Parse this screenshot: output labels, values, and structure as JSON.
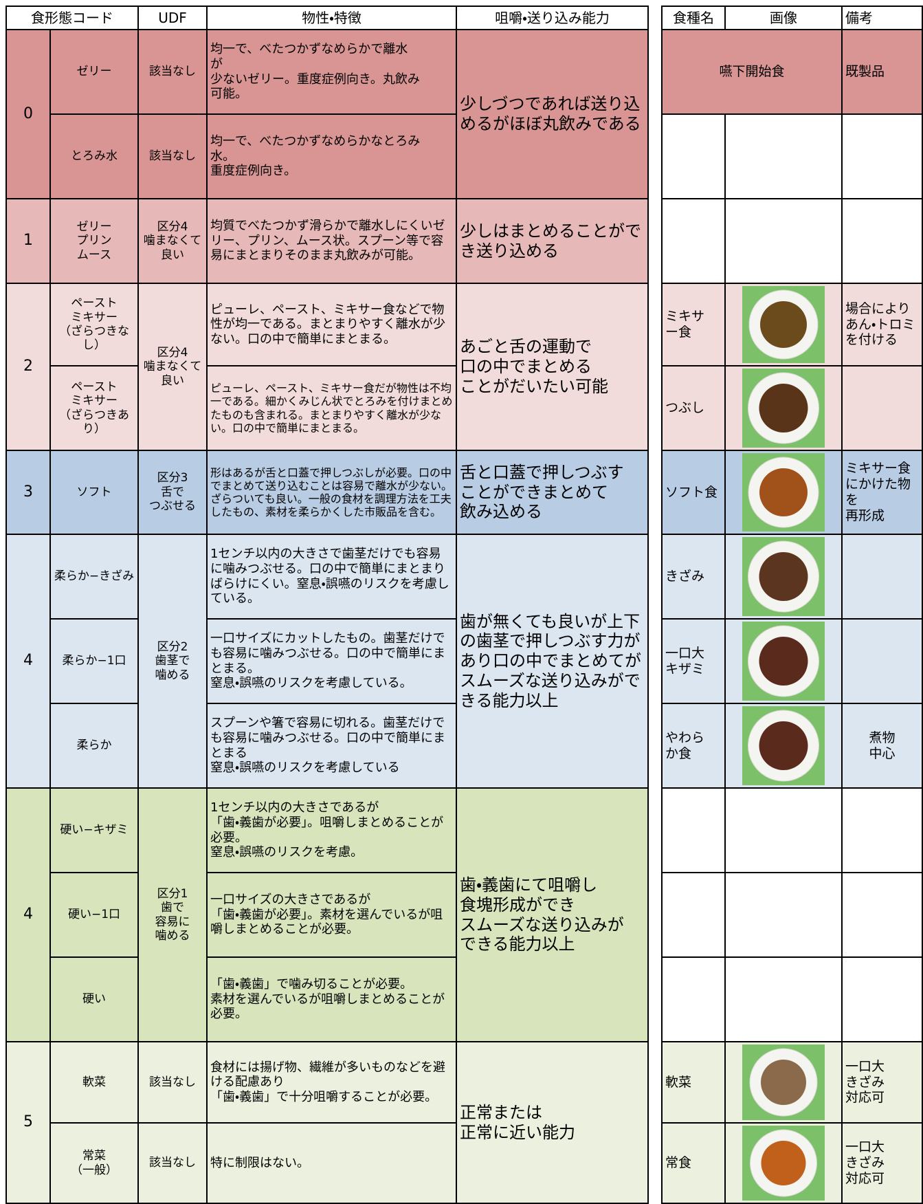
{
  "header": {
    "left": [
      "食形態コード",
      "UDF",
      "物性・特徴",
      "咀嚼・送り込み能力"
    ],
    "right": [
      "食種名",
      "画像",
      "備考"
    ]
  },
  "groups": [
    {
      "code": "0",
      "ability": "少しづつであれば送り込めるがほぼ丸飲みである",
      "rows": [
        {
          "name": "ゼリー",
          "udf": "該当なし",
          "desc": "均一で、べたつかずなめらかで離水\nが\n少ないゼリー。重度症例向き。丸飲み\n可能。"
        },
        {
          "name": "とろみ水",
          "udf": "該当なし",
          "desc": "均一で、べたつかずなめらかなとろみ\n水。\n重度症例向き。"
        }
      ]
    },
    {
      "code": "1",
      "udf": "区分4\n噛まなくて\n良い",
      "ability": "少しはまとめることができ送り込める",
      "rows": [
        {
          "name": "ゼリー\nプリン\nムース",
          "desc": "均質でべたつかず滑らかで離水しにくいゼリー、プリン、ムース状。スプーン等で容易にまとまりそのまま丸飲みが可能。"
        }
      ]
    },
    {
      "code": "2",
      "udf": "区分4\n噛まなくて\n良い",
      "ability": "あごと舌の運動で\n口の中でまとめる\nことがだいたい可能",
      "rows": [
        {
          "name": "ペースト\nミキサー\n（ざらつきなし）",
          "desc": "ピューレ、ペースト、ミキサー食などで物性が均一である。まとまりやすく離水が少ない。口の中で簡単にまとまる。"
        },
        {
          "name": "ペースト\nミキサー\n（ざらつきあり）",
          "desc": "ピューレ、ペースト、ミキサー食だが物性は不均一である。細かくみじん状でとろみを付けまとめたものも含まれる。まとまりやすく離水が少ない。口の中で簡単にまとまる。"
        }
      ]
    },
    {
      "code": "3",
      "udf": "区分3\n舌で\nつぶせる",
      "ability": "舌と口蓋で押しつぶす\nことができまとめて\n飲み込める",
      "rows": [
        {
          "name": "ソフト",
          "desc": "形はあるが舌と口蓋で押しつぶしが必要。口の中でまとめて送り込むことは容易で離水が少ない。ざらついても良い。一般の食材を調理方法を工夫したもの、素材を柔らかくした市販品を含む。"
        }
      ]
    },
    {
      "code": "4",
      "udf": "区分2\n歯茎で\n噛める",
      "ability": "歯が無くても良いが上下の歯茎で押しつぶす力があり口の中でまとめてがスムーズな送り込みができる能力以上",
      "rows": [
        {
          "name": "柔らか−きざみ",
          "desc": "1センチ以内の大きさで歯茎だけでも容易に噛みつぶせる。口の中で簡単にまとまりばらけにくい。窒息・誤嚥のリスクを考慮している。"
        },
        {
          "name": "柔らか−1口",
          "desc": "一口サイズにカットしたもの。歯茎だけでも容易に噛みつぶせる。口の中で簡単にまとまる。\n窒息・誤嚥のリスクを考慮している。"
        },
        {
          "name": "柔らか",
          "desc": "スプーンや箸で容易に切れる。歯茎だけでも容易に噛みつぶせる。口の中で簡単にまとまる\n窒息・誤嚥のリスクを考慮している"
        }
      ]
    },
    {
      "code": "4",
      "udf": "区分1\n歯で\n容易に\n噛める",
      "ability": "歯・義歯にて咀嚼し\n食塊形成ができ\nスムーズな送り込みが\nできる能力以上",
      "rows": [
        {
          "name": "硬い−キザミ",
          "desc": "1センチ以内の大きさであるが\n「歯・義歯が必要」。咀嚼しまとめることが必要。\n窒息・誤嚥のリスクを考慮。"
        },
        {
          "name": "硬い−1口",
          "desc": "一口サイズの大きさであるが\n「歯・義歯が必要」。素材を選んでいるが咀嚼しまとめることが必要。"
        },
        {
          "name": "硬い",
          "desc": "「歯・義歯」で噛み切ることが必要。\n素材を選んでいるが咀嚼しまとめることが必要。"
        }
      ]
    },
    {
      "code": "5",
      "ability": "正常または\n正常に近い能力",
      "rows": [
        {
          "name": "軟菜",
          "udf": "該当なし",
          "desc": "食材には揚げ物、繊維が多いものなどを避ける配慮あり\n「歯・義歯」で十分咀嚼することが必要。"
        },
        {
          "name": "常菜\n（一般）",
          "udf": "該当なし",
          "desc": "特に制限はない。"
        }
      ]
    }
  ],
  "menu": [
    {
      "name": "嚥下開始食",
      "note": "既製品"
    },
    {
      "name": "ミキサ\nー食",
      "note": "場合により\nあん・トロミ\nを付ける"
    },
    {
      "name": "つぶし"
    },
    {
      "name": "ソフト食",
      "note": "ミキサー食\nにかけた物\nを\n再形成"
    },
    {
      "name": "きざみ"
    },
    {
      "name": "一口大\nキザミ"
    },
    {
      "name": "やわら\nか食",
      "note": "煮物\n中心"
    },
    {
      "name": "軟菜",
      "note": "一口大\nきざみ\n対応可"
    },
    {
      "name": "常食",
      "note": "一口大\nきざみ\n対応可"
    }
  ]
}
